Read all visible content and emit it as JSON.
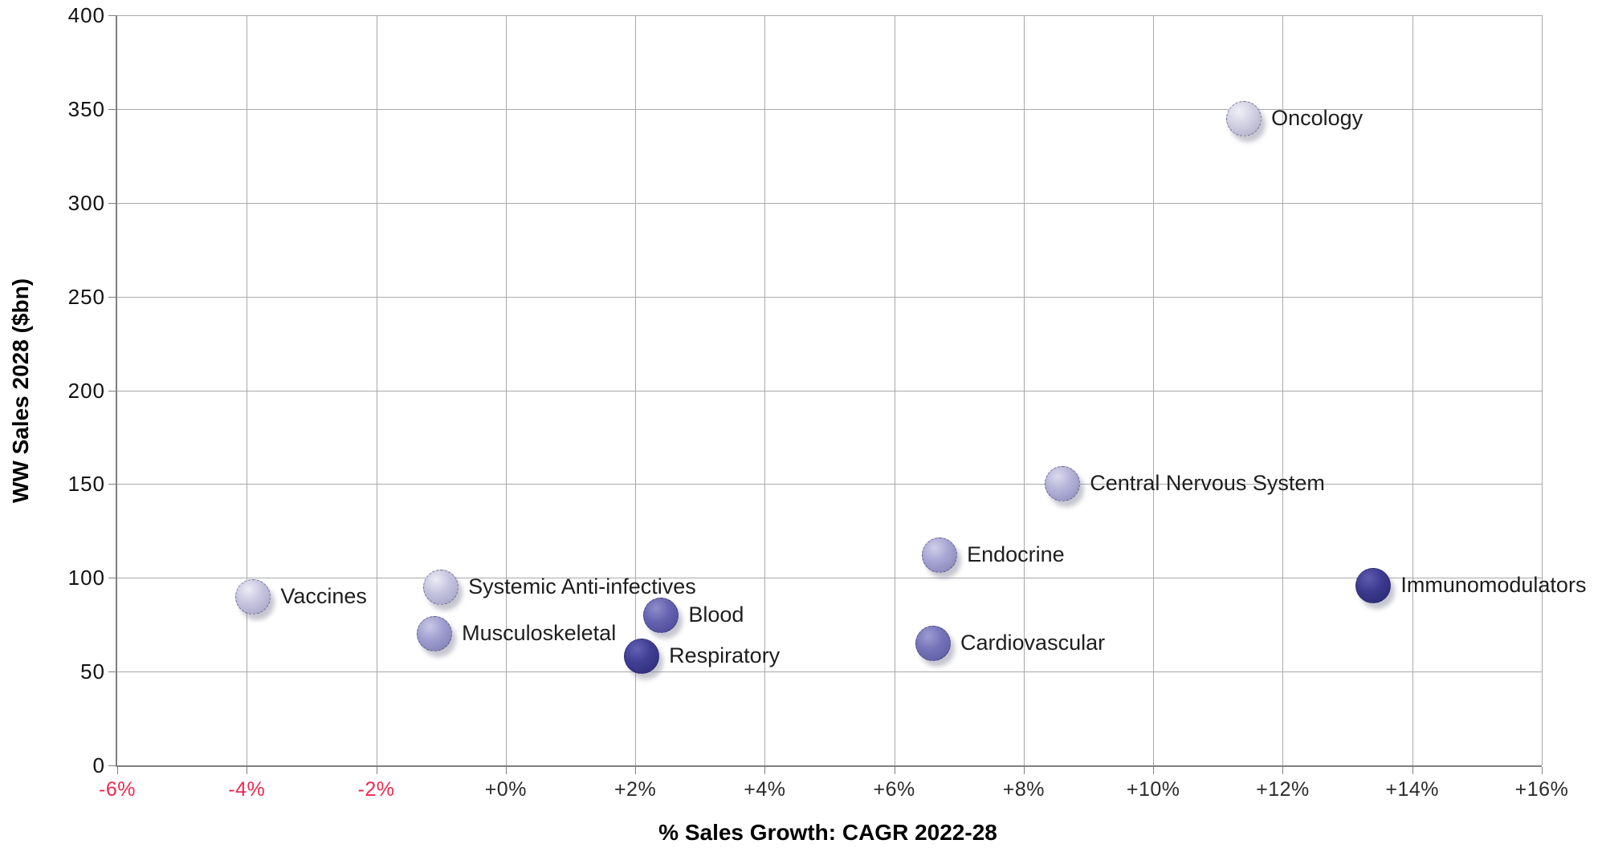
{
  "chart_data": {
    "type": "scatter",
    "title": "",
    "xlabel": "% Sales Growth: CAGR 2022-28",
    "ylabel": "WW Sales 2028 ($bn)",
    "xlim": [
      -6,
      16
    ],
    "ylim": [
      0,
      400
    ],
    "grid": true,
    "legend": "none",
    "marker_diameter": 44,
    "colors": {
      "negative_tick_label": "#ee2950",
      "tick_label": "#2b2b2b",
      "gridline": "#a9a9a9",
      "axis_line": "#7f7f7f",
      "point_label": "#1e1e1e"
    },
    "x_ticks": [
      {
        "value": -6,
        "label": "-6%"
      },
      {
        "value": -4,
        "label": "-4%"
      },
      {
        "value": -2,
        "label": "-2%"
      },
      {
        "value": 0,
        "label": "+0%"
      },
      {
        "value": 2,
        "label": "+2%"
      },
      {
        "value": 4,
        "label": "+4%"
      },
      {
        "value": 6,
        "label": "+6%"
      },
      {
        "value": 8,
        "label": "+8%"
      },
      {
        "value": 10,
        "label": "+10%"
      },
      {
        "value": 12,
        "label": "+12%"
      },
      {
        "value": 14,
        "label": "+14%"
      },
      {
        "value": 16,
        "label": "+16%"
      }
    ],
    "y_ticks": [
      {
        "value": 0,
        "label": "0"
      },
      {
        "value": 50,
        "label": "50"
      },
      {
        "value": 100,
        "label": "100"
      },
      {
        "value": 150,
        "label": "150"
      },
      {
        "value": 200,
        "label": "200"
      },
      {
        "value": 250,
        "label": "250"
      },
      {
        "value": 300,
        "label": "300"
      },
      {
        "value": 350,
        "label": "350"
      },
      {
        "value": 400,
        "label": "400"
      }
    ],
    "points": [
      {
        "label": "Oncology",
        "x": 11.4,
        "y": 345,
        "fill": "#d3d2e4",
        "highlight": "#f0eff7",
        "shade": "#aeadc7"
      },
      {
        "label": "Central Nervous System",
        "x": 8.6,
        "y": 150,
        "fill": "#b4b3d8",
        "highlight": "#dbdaee",
        "shade": "#908fbe"
      },
      {
        "label": "Endocrine",
        "x": 6.7,
        "y": 112,
        "fill": "#a7a6d3",
        "highlight": "#d0cfe9",
        "shade": "#8483b6"
      },
      {
        "label": "Immunomodulators",
        "x": 13.4,
        "y": 96,
        "fill": "#3d3b91",
        "highlight": "#5e5cae",
        "shade": "#2a2870"
      },
      {
        "label": "Systemic Anti-infectives",
        "x": -1.0,
        "y": 95,
        "fill": "#c5c4df",
        "highlight": "#ecebf5",
        "shade": "#a3a2c6"
      },
      {
        "label": "Vaccines",
        "x": -3.9,
        "y": 90,
        "fill": "#c7c6e0",
        "highlight": "#edecf6",
        "shade": "#a5a4c8"
      },
      {
        "label": "Blood",
        "x": 2.4,
        "y": 80,
        "fill": "#6664b1",
        "highlight": "#8f8dc8",
        "shade": "#4b4996"
      },
      {
        "label": "Musculoskeletal",
        "x": -1.1,
        "y": 70,
        "fill": "#a09fd0",
        "highlight": "#c9c8e6",
        "shade": "#7f7eb2"
      },
      {
        "label": "Cardiovascular",
        "x": 6.6,
        "y": 65,
        "fill": "#7674b9",
        "highlight": "#9e9cd0",
        "shade": "#5b59a0"
      },
      {
        "label": "Respiratory",
        "x": 2.1,
        "y": 58,
        "fill": "#413f95",
        "highlight": "#6361b2",
        "shade": "#2e2c74"
      }
    ]
  }
}
